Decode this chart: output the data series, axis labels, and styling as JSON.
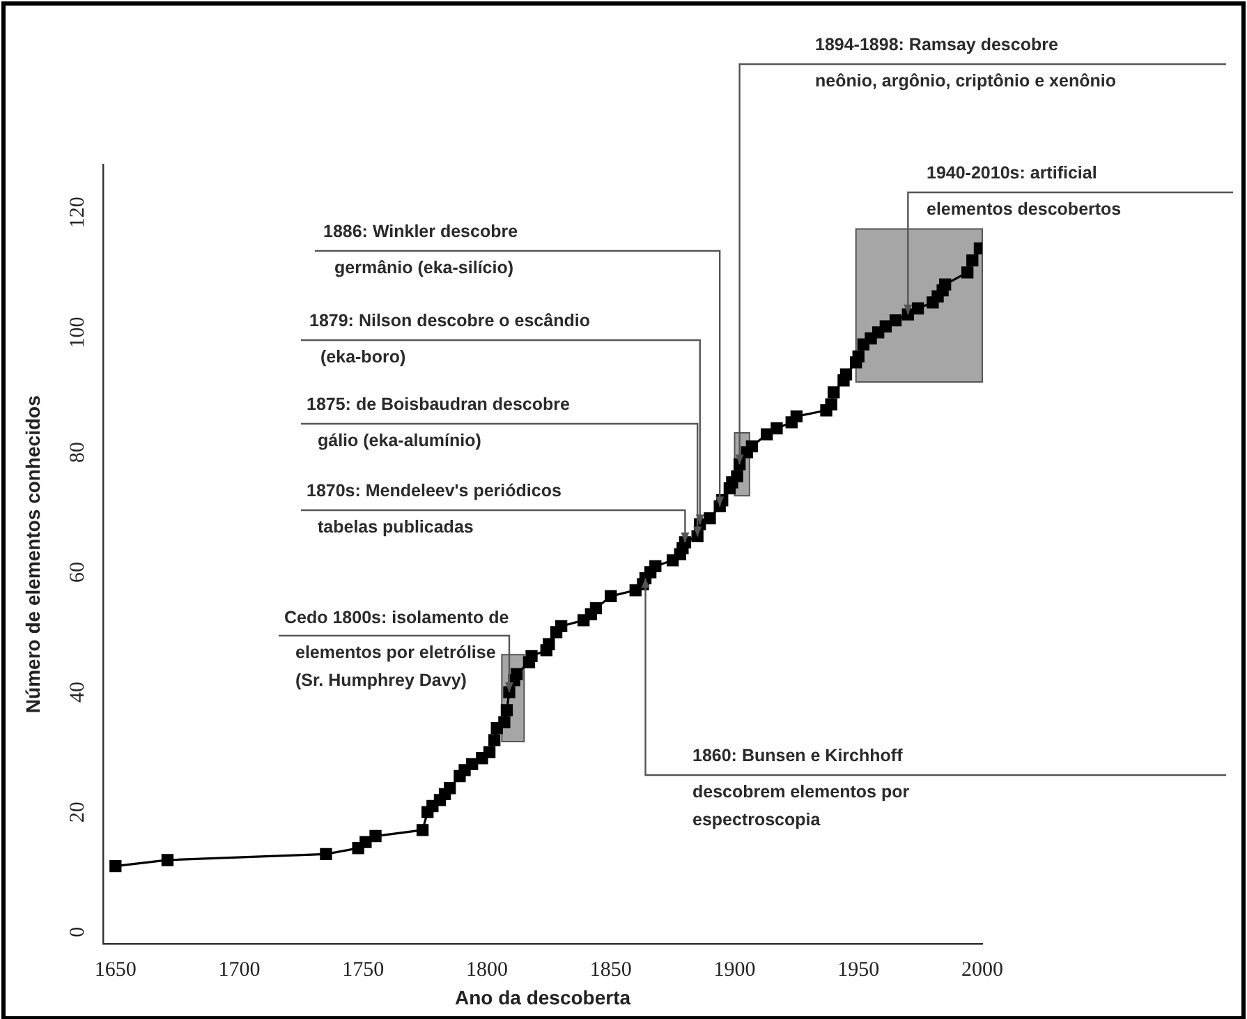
{
  "chart_data": {
    "type": "line",
    "xlabel": "Ano da descoberta",
    "ylabel": "Número de elementos conhecidos",
    "x": [
      1650,
      1671,
      1735,
      1748,
      1751,
      1755,
      1774,
      1776,
      1778,
      1781,
      1783,
      1785,
      1789,
      1791,
      1794,
      1798,
      1801,
      1803,
      1804,
      1807,
      1808,
      1809,
      1811,
      1812,
      1817,
      1818,
      1824,
      1825,
      1828,
      1830,
      1839,
      1842,
      1844,
      1850,
      1860,
      1863,
      1864,
      1866,
      1868,
      1875,
      1878,
      1879,
      1880,
      1885,
      1886,
      1890,
      1894,
      1895,
      1898,
      1899,
      1901,
      1902,
      1905,
      1907,
      1913,
      1917,
      1923,
      1925,
      1937,
      1939,
      1940,
      1944,
      1945,
      1949,
      1950,
      1952,
      1955,
      1958,
      1961,
      1965,
      1970,
      1974,
      1980,
      1982,
      1984,
      1985,
      1994,
      1996,
      1999
    ],
    "series": [
      {
        "color": "#000000",
        "values": [
          11,
          12,
          13,
          14,
          15,
          16,
          17,
          20,
          21,
          22,
          23,
          24,
          26,
          27,
          28,
          29,
          30,
          32,
          34,
          35,
          37,
          40,
          42,
          43,
          45,
          46,
          47,
          48,
          50,
          51,
          52,
          53,
          54,
          56,
          57,
          58,
          59,
          60,
          61,
          62,
          63,
          64,
          65,
          66,
          68,
          69,
          71,
          72,
          74,
          75,
          76,
          78,
          80,
          81,
          83,
          84,
          85,
          86,
          87,
          88,
          90,
          92,
          93,
          95,
          96,
          98,
          99,
          100,
          101,
          102,
          103,
          104,
          105,
          106,
          107,
          108,
          110,
          112,
          114
        ]
      }
    ],
    "xlim": [
      1645,
      2000
    ],
    "xticks": [
      1650,
      1700,
      1750,
      1800,
      1850,
      1900,
      1950,
      2000
    ],
    "ylim": [
      -2,
      128
    ],
    "yticks": [
      0,
      20,
      40,
      60,
      80,
      100,
      120
    ],
    "grid": false,
    "legend": false,
    "marker": "square",
    "line_style": "solid",
    "bands": [
      {
        "axis": "x",
        "from": 1806,
        "to": 1815,
        "color": "#a6a6a6"
      },
      {
        "axis": "x",
        "from": 1900,
        "to": 1906,
        "color": "#a6a6a6"
      },
      {
        "axis": "x",
        "from": 1949,
        "to": 2000,
        "color": "#a6a6a6"
      }
    ],
    "annotations": [
      {
        "text": "Cedo 1800s: isolamento de\nelementos por eletrólise\n(Sr. Humphrey Davy)",
        "x": 1809,
        "y": 40
      },
      {
        "text": "1860: Bunsen e Kirchhoff\ndescobrem elementos por\nespectroscopia",
        "x": 1864,
        "y": 59
      },
      {
        "text": "1870s: Mendeleev's periódicos\ntabelas publicadas",
        "x": 1880,
        "y": 65
      },
      {
        "text": "1875: de Boisbaudran descobre\ngálio (eka-alumínio)",
        "x": 1885,
        "y": 66
      },
      {
        "text": "1879: Nilson descobre o escândio\n(eka-boro)",
        "x": 1886,
        "y": 68
      },
      {
        "text": "1886: Winkler descobre\ngermânio (eka-silício)",
        "x": 1894,
        "y": 71
      },
      {
        "text": "1894-1898: Ramsay descobre\nneônio, argônio, criptônio e xenônio",
        "x": 1902,
        "y": 78
      },
      {
        "text": "1940-2010s: artificial\nelementos descobertos",
        "x": 1970,
        "y": 103
      }
    ]
  }
}
